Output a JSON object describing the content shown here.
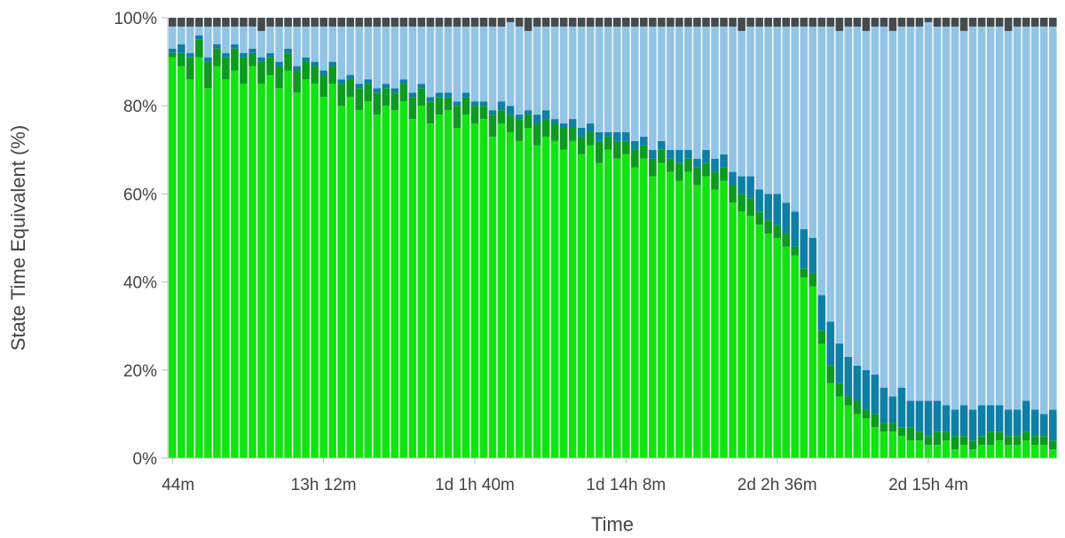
{
  "chart_data": {
    "type": "bar",
    "stacked": true,
    "title": "",
    "xlabel": "Time",
    "ylabel": "State Time Equivalent (%)",
    "ylim": [
      0,
      100
    ],
    "y_ticks": [
      "0%",
      "20%",
      "40%",
      "60%",
      "80%",
      "100%"
    ],
    "x_ticks": [
      "44m",
      "13h 12m",
      "1d 1h 40m",
      "1d 14h 8m",
      "2d 2h 36m",
      "2d 15h 4m"
    ],
    "x_tick_bar_indices": [
      0,
      17,
      34,
      51,
      68,
      85
    ],
    "grid": false,
    "legend": "none",
    "n_bars": 100,
    "series": [
      {
        "color": "#12e312",
        "values": [
          91,
          89,
          86,
          91,
          84,
          89,
          86,
          88,
          85,
          89,
          85,
          87,
          84,
          88,
          83,
          86,
          85,
          82,
          85,
          80,
          82,
          79,
          81,
          78,
          80,
          79,
          81,
          77,
          80,
          76,
          78,
          79,
          75,
          78,
          76,
          77,
          73,
          76,
          74,
          72,
          75,
          71,
          73,
          72,
          70,
          72,
          69,
          71,
          67,
          70,
          68,
          69,
          66,
          68,
          64,
          67,
          65,
          63,
          65,
          62,
          64,
          61,
          63,
          58,
          56,
          55,
          53,
          51,
          50,
          48,
          46,
          41,
          39,
          26,
          17,
          14,
          12,
          10,
          9,
          7,
          6,
          6,
          5,
          4,
          4,
          3,
          3,
          4,
          2,
          3,
          2,
          3,
          3,
          4,
          3,
          3,
          4,
          3,
          3,
          2
        ]
      },
      {
        "color": "#0d9a20",
        "values": [
          1,
          3,
          5,
          4,
          6,
          4,
          5,
          5,
          6,
          3,
          5,
          4,
          5,
          4,
          5,
          4,
          4,
          5,
          4,
          5,
          4,
          5,
          4,
          5,
          4,
          4,
          4,
          5,
          4,
          5,
          4,
          3,
          5,
          4,
          4,
          3,
          5,
          3,
          4,
          5,
          3,
          5,
          4,
          4,
          5,
          3,
          4,
          3,
          5,
          3,
          4,
          3,
          4,
          3,
          4,
          3,
          3,
          4,
          3,
          4,
          3,
          4,
          3,
          4,
          4,
          4,
          3,
          3,
          3,
          3,
          2,
          2,
          3,
          3,
          4,
          3,
          2,
          3,
          2,
          3,
          2,
          2,
          2,
          3,
          2,
          2,
          3,
          2,
          3,
          2,
          2,
          2,
          3,
          2,
          2,
          2,
          2,
          2,
          2,
          2
        ]
      },
      {
        "color": "#0f7fa6",
        "values": [
          1,
          2,
          1,
          1,
          1,
          1,
          1,
          1,
          1,
          1,
          1,
          1,
          1,
          1,
          1,
          1,
          1,
          1,
          1,
          1,
          1,
          1,
          1,
          1,
          1,
          1,
          1,
          1,
          1,
          1,
          1,
          1,
          1,
          1,
          1,
          1,
          1,
          2,
          2,
          1,
          1,
          2,
          2,
          1,
          1,
          2,
          2,
          2,
          2,
          1,
          2,
          2,
          2,
          2,
          2,
          2,
          2,
          3,
          2,
          2,
          3,
          3,
          3,
          3,
          4,
          5,
          5,
          6,
          7,
          7,
          8,
          9,
          8,
          8,
          10,
          9,
          9,
          8,
          9,
          9,
          8,
          6,
          9,
          6,
          7,
          8,
          7,
          6,
          6,
          7,
          7,
          7,
          6,
          6,
          6,
          6,
          7,
          6,
          5,
          7
        ]
      },
      {
        "color": "#92c4e6",
        "values": [
          5,
          4,
          6,
          2,
          7,
          4,
          6,
          4,
          6,
          5,
          6,
          6,
          8,
          5,
          9,
          7,
          8,
          10,
          8,
          12,
          11,
          13,
          12,
          14,
          13,
          14,
          12,
          15,
          13,
          16,
          15,
          15,
          17,
          15,
          17,
          17,
          19,
          17,
          19,
          20,
          18,
          20,
          19,
          21,
          22,
          21,
          23,
          22,
          24,
          24,
          24,
          24,
          26,
          25,
          28,
          26,
          28,
          28,
          28,
          30,
          28,
          30,
          29,
          33,
          33,
          34,
          37,
          38,
          38,
          40,
          42,
          46,
          48,
          61,
          67,
          71,
          75,
          77,
          77,
          79,
          82,
          83,
          82,
          85,
          85,
          86,
          85,
          86,
          87,
          85,
          87,
          86,
          86,
          86,
          86,
          87,
          85,
          87,
          88,
          87
        ]
      },
      {
        "color": "#444b4e",
        "values": [
          2,
          2,
          2,
          2,
          2,
          2,
          2,
          2,
          2,
          2,
          3,
          2,
          2,
          2,
          2,
          2,
          2,
          2,
          2,
          2,
          2,
          2,
          2,
          2,
          2,
          2,
          2,
          2,
          2,
          2,
          2,
          2,
          2,
          2,
          2,
          2,
          2,
          2,
          1,
          2,
          3,
          2,
          2,
          2,
          2,
          2,
          2,
          2,
          2,
          2,
          2,
          2,
          2,
          2,
          2,
          2,
          2,
          2,
          2,
          2,
          2,
          2,
          2,
          2,
          3,
          2,
          2,
          2,
          2,
          2,
          2,
          2,
          2,
          2,
          2,
          3,
          2,
          2,
          3,
          2,
          2,
          3,
          2,
          2,
          2,
          1,
          2,
          2,
          2,
          3,
          2,
          2,
          2,
          2,
          3,
          2,
          2,
          2,
          2,
          2
        ]
      }
    ]
  }
}
